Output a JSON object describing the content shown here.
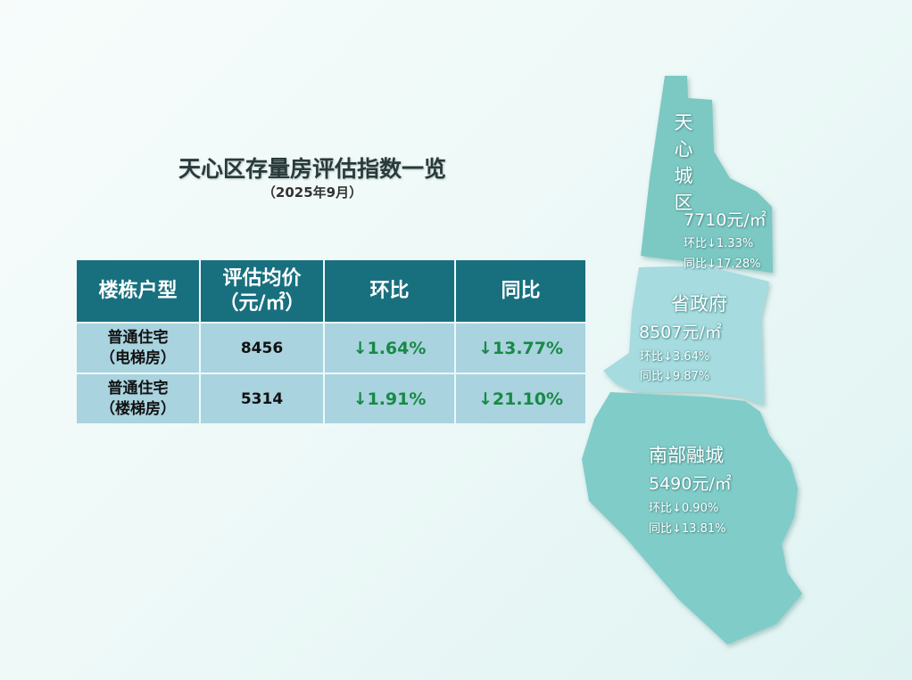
{
  "header": {
    "title": "天心区存量房评估指数一览",
    "subtitle": "（2025年9月）"
  },
  "table": {
    "columns": [
      "楼栋户型",
      [
        "评估均价",
        "（元/㎡）"
      ],
      "环比",
      "同比"
    ],
    "rows": [
      [
        [
          "普通住宅",
          "（电梯房）"
        ],
        "8456",
        "↓1.64%",
        "↓13.77%"
      ],
      [
        [
          "普通住宅",
          "（楼梯房）"
        ],
        "5314",
        "↓1.91%",
        "↓21.10%"
      ]
    ]
  },
  "map": {
    "regions": [
      {
        "name": "天心城区",
        "price": "7710元/㎡",
        "mom": "环比↓1.33%",
        "yoy": "同比↓17.28%"
      },
      {
        "name": "省政府",
        "price": "8507元/㎡",
        "mom": "环比↓3.64%",
        "yoy": "同比↓9.87%"
      },
      {
        "name": "南部融城",
        "price": "5490元/㎡",
        "mom": "环比↓0.90%",
        "yoy": "同比↓13.81%"
      }
    ]
  }
}
